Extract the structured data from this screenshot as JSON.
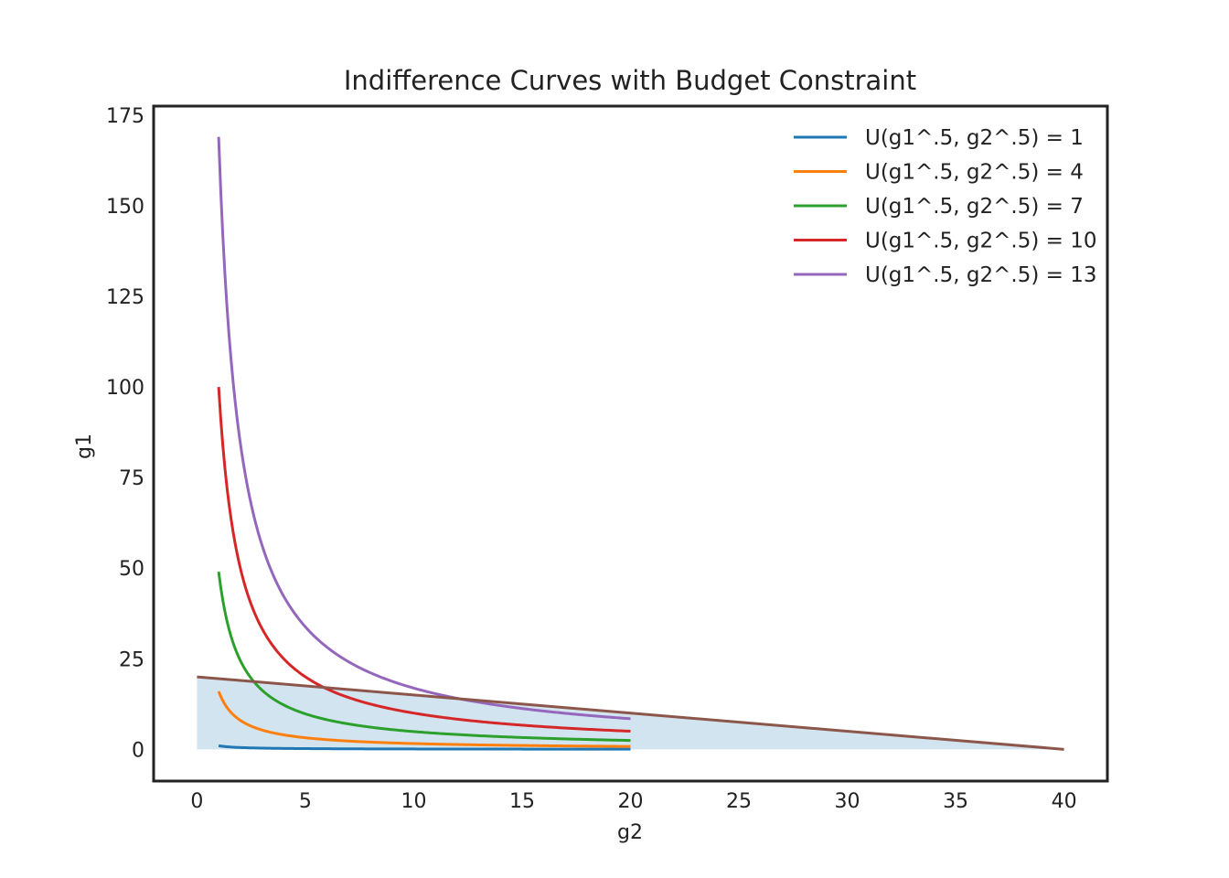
{
  "chart_data": {
    "type": "line",
    "title": "Indifference Curves with Budget Constraint",
    "xlabel": "g2",
    "ylabel": "g1",
    "xlim": [
      -2,
      42
    ],
    "ylim": [
      -8.75,
      177.5
    ],
    "xticks": [
      0,
      5,
      10,
      15,
      20,
      25,
      30,
      35,
      40
    ],
    "yticks": [
      0,
      25,
      50,
      75,
      100,
      125,
      150,
      175
    ],
    "grid": false,
    "legend_position": "top-right",
    "indifference_curves": {
      "x_range": [
        1,
        20
      ],
      "formula": "g1 = U^2 / g2"
    },
    "series": [
      {
        "name": "U(g1^.5, g2^.5) = 1",
        "utility": 1,
        "color": "#1f77b4"
      },
      {
        "name": "U(g1^.5, g2^.5) = 4",
        "utility": 4,
        "color": "#ff7f0e"
      },
      {
        "name": "U(g1^.5, g2^.5) = 7",
        "utility": 7,
        "color": "#2ca02c"
      },
      {
        "name": "U(g1^.5, g2^.5) = 10",
        "utility": 10,
        "color": "#d62728"
      },
      {
        "name": "U(g1^.5, g2^.5) = 13",
        "utility": 13,
        "color": "#9467bd"
      }
    ],
    "budget_constraint": {
      "x": [
        0,
        40
      ],
      "y": [
        20,
        0
      ],
      "color": "#8c564b",
      "fill_color": "#1f77b4",
      "fill_opacity": 0.2
    }
  }
}
